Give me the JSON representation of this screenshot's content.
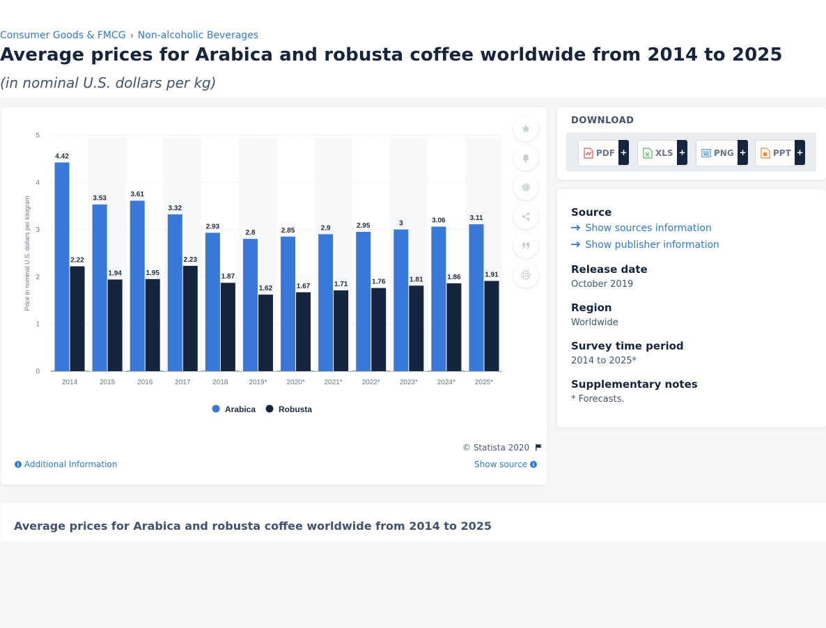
{
  "breadcrumb": {
    "item1": "Consumer Goods & FMCG",
    "separator": "›",
    "item2": "Non-alcoholic Beverages"
  },
  "title": "Average prices for Arabica and robusta coffee worldwide from 2014 to 2025",
  "subtitle": "(in nominal U.S. dollars per kg)",
  "toolbar": {
    "icons": [
      "star-icon",
      "bell-icon",
      "gear-icon",
      "share-icon",
      "quote-icon",
      "print-icon"
    ]
  },
  "chart_data": {
    "type": "bar",
    "categories": [
      "2014",
      "2015",
      "2016",
      "2017",
      "2018",
      "2019*",
      "2020*",
      "2021*",
      "2022*",
      "2023*",
      "2024*",
      "2025*"
    ],
    "series": [
      {
        "name": "Arabica",
        "color": "#3778d8",
        "values": [
          4.42,
          3.53,
          3.61,
          3.32,
          2.93,
          2.8,
          2.85,
          2.9,
          2.95,
          3,
          3.06,
          3.11
        ],
        "labels": [
          "4.42",
          "3.53",
          "3.61",
          "3.32",
          "2.93",
          "2.8",
          "2.85",
          "2.9",
          "2.95",
          "3",
          "3.06",
          "3.11"
        ]
      },
      {
        "name": "Robusta",
        "color": "#15253d",
        "values": [
          2.22,
          1.94,
          1.95,
          2.23,
          1.87,
          1.62,
          1.67,
          1.71,
          1.76,
          1.81,
          1.86,
          1.91
        ],
        "labels": [
          "2.22",
          "1.94",
          "1.95",
          "2.23",
          "1.87",
          "1.62",
          "1.67",
          "1.71",
          "1.76",
          "1.81",
          "1.86",
          "1.91"
        ]
      }
    ],
    "ylabel": "Price in nominal U.S. dollars per kilogram",
    "ylim": [
      0,
      5
    ],
    "yticks": [
      "0",
      "1",
      "2",
      "3",
      "4",
      "5"
    ],
    "grid": true,
    "legend": "bottom"
  },
  "chart_footer": {
    "copyright": "© Statista 2020",
    "additional_info": "Additional Information",
    "show_source": "Show source"
  },
  "download": {
    "heading": "DOWNLOAD",
    "buttons": [
      {
        "label": "PDF",
        "plus": "+",
        "color": "#d9534f"
      },
      {
        "label": "XLS",
        "plus": "+",
        "color": "#5cb85c"
      },
      {
        "label": "PNG",
        "plus": "+",
        "color": "#5b9bd5"
      },
      {
        "label": "PPT",
        "plus": "+",
        "color": "#f0883e"
      }
    ]
  },
  "info": {
    "source_heading": "Source",
    "show_sources": "Show sources information",
    "show_publisher": "Show publisher information",
    "release_heading": "Release date",
    "release_value": "October 2019",
    "region_heading": "Region",
    "region_value": "Worldwide",
    "period_heading": "Survey time period",
    "period_value": "2014 to 2025*",
    "notes_heading": "Supplementary notes",
    "notes_value": "* Forecasts."
  },
  "bottom": {
    "title": "Average prices for Arabica and robusta coffee worldwide from 2014 to 2025"
  }
}
